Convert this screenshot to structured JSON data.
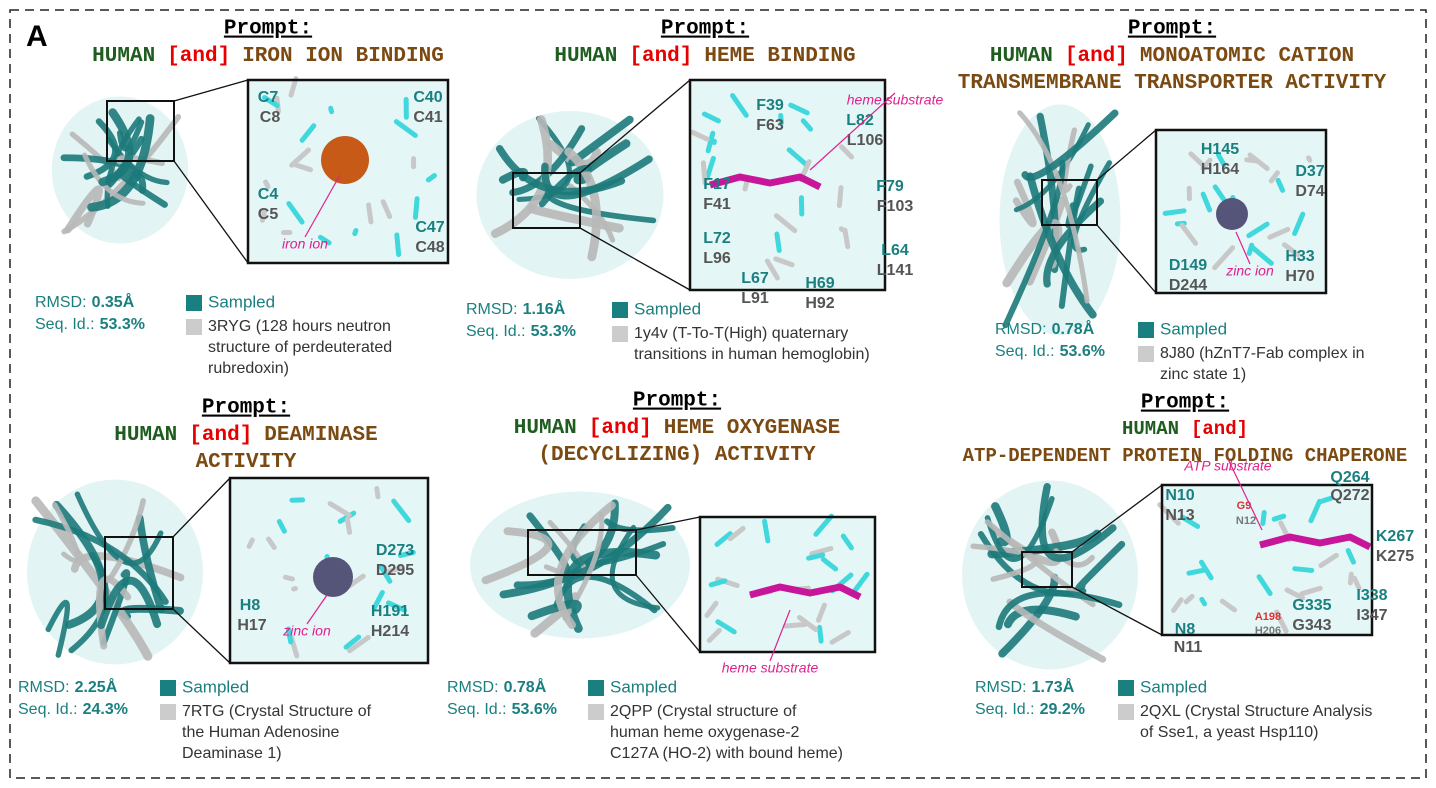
{
  "figure_label": "A",
  "panels": [
    {
      "prompt": "Prompt:",
      "lines": [
        {
          "tokens": [
            "HUMAN",
            "[and]",
            "IRON ION BINDING"
          ],
          "colors": [
            "#1f5c1f",
            "#e60000",
            "#7b4a12"
          ]
        }
      ],
      "rmsd_label": "RMSD:",
      "rmsd": "0.35Å",
      "seqid_label": "Seq. Id.:",
      "seqid": "53.3%",
      "sampled": "Sampled",
      "sampled_color": "#1a7f7f",
      "reference_color": "#cccccc",
      "reference": [
        "3RYG (128 hours neutron",
        "structure of perdeuterated",
        "rubredoxin)"
      ],
      "residues": [
        {
          "label": "C7",
          "color": "#1a7f7f"
        },
        {
          "label": "C8",
          "color": "#555555"
        },
        {
          "label": "C40",
          "color": "#1a7f7f"
        },
        {
          "label": "C41",
          "color": "#555555"
        },
        {
          "label": "C4",
          "color": "#1a7f7f"
        },
        {
          "label": "C5",
          "color": "#555555"
        },
        {
          "label": "C47",
          "color": "#1a7f7f"
        },
        {
          "label": "C48",
          "color": "#555555"
        }
      ],
      "annotation": "iron ion"
    },
    {
      "prompt": "Prompt:",
      "lines": [
        {
          "tokens": [
            "HUMAN",
            "[and]",
            "HEME BINDING"
          ],
          "colors": [
            "#1f5c1f",
            "#e60000",
            "#7b4a12"
          ]
        }
      ],
      "rmsd_label": "RMSD:",
      "rmsd": "1.16Å",
      "seqid_label": "Seq. Id.:",
      "seqid": "53.3%",
      "sampled": "Sampled",
      "sampled_color": "#1a7f7f",
      "reference_color": "#cccccc",
      "reference": [
        "1y4v (T-To-T(High) quaternary",
        "transitions in human hemoglobin)"
      ],
      "residues": [
        {
          "label": "F39",
          "color": "#1a7f7f"
        },
        {
          "label": "F63",
          "color": "#555555"
        },
        {
          "label": "L82",
          "color": "#1a7f7f"
        },
        {
          "label": "L106",
          "color": "#555555"
        },
        {
          "label": "F17",
          "color": "#1a7f7f"
        },
        {
          "label": "F41",
          "color": "#555555"
        },
        {
          "label": "F79",
          "color": "#1a7f7f"
        },
        {
          "label": "F103",
          "color": "#555555"
        },
        {
          "label": "L72",
          "color": "#1a7f7f"
        },
        {
          "label": "L96",
          "color": "#555555"
        },
        {
          "label": "L64",
          "color": "#1a7f7f"
        },
        {
          "label": "L141",
          "color": "#555555"
        },
        {
          "label": "L67",
          "color": "#1a7f7f"
        },
        {
          "label": "L91",
          "color": "#555555"
        },
        {
          "label": "H69",
          "color": "#1a7f7f"
        },
        {
          "label": "H92",
          "color": "#555555"
        }
      ],
      "annotation": "heme substrate"
    },
    {
      "prompt": "Prompt:",
      "lines": [
        {
          "tokens": [
            "HUMAN",
            "[and]",
            "MONOATOMIC CATION"
          ],
          "colors": [
            "#1f5c1f",
            "#e60000",
            "#7b4a12"
          ]
        },
        {
          "tokens": [
            "TRANSMEMBRANE TRANSPORTER ACTIVITY"
          ],
          "colors": [
            "#7b4a12"
          ]
        }
      ],
      "rmsd_label": "RMSD:",
      "rmsd": "0.78Å",
      "seqid_label": "Seq. Id.:",
      "seqid": "53.6%",
      "sampled": "Sampled",
      "sampled_color": "#1a7f7f",
      "reference_color": "#cccccc",
      "reference": [
        "8J80 (hZnT7-Fab complex in",
        "zinc state 1)"
      ],
      "residues": [
        {
          "label": "H145",
          "color": "#1a7f7f"
        },
        {
          "label": "H164",
          "color": "#555555"
        },
        {
          "label": "D37",
          "color": "#1a7f7f"
        },
        {
          "label": "D74",
          "color": "#555555"
        },
        {
          "label": "D149",
          "color": "#1a7f7f"
        },
        {
          "label": "D244",
          "color": "#555555"
        },
        {
          "label": "H33",
          "color": "#1a7f7f"
        },
        {
          "label": "H70",
          "color": "#555555"
        }
      ],
      "annotation": "zinc ion"
    },
    {
      "prompt": "Prompt:",
      "lines": [
        {
          "tokens": [
            "HUMAN",
            "[and]",
            "DEAMINASE"
          ],
          "colors": [
            "#1f5c1f",
            "#e60000",
            "#7b4a12"
          ]
        },
        {
          "tokens": [
            "ACTIVITY"
          ],
          "colors": [
            "#7b4a12"
          ]
        }
      ],
      "rmsd_label": "RMSD:",
      "rmsd": "2.25Å",
      "seqid_label": "Seq. Id.:",
      "seqid": "24.3%",
      "sampled": "Sampled",
      "sampled_color": "#1a7f7f",
      "reference_color": "#cccccc",
      "reference": [
        "7RTG (Crystal Structure of",
        "the Human Adenosine",
        "Deaminase 1)"
      ],
      "residues": [
        {
          "label": "D273",
          "color": "#1a7f7f"
        },
        {
          "label": "D295",
          "color": "#555555"
        },
        {
          "label": "H8",
          "color": "#1a7f7f"
        },
        {
          "label": "H17",
          "color": "#555555"
        },
        {
          "label": "H191",
          "color": "#1a7f7f"
        },
        {
          "label": "H214",
          "color": "#555555"
        }
      ],
      "annotation": "zinc ion"
    },
    {
      "prompt": "Prompt:",
      "lines": [
        {
          "tokens": [
            "HUMAN",
            "[and]",
            "HEME OXYGENASE"
          ],
          "colors": [
            "#1f5c1f",
            "#e60000",
            "#7b4a12"
          ]
        },
        {
          "tokens": [
            "(DECYCLIZING) ACTIVITY"
          ],
          "colors": [
            "#7b4a12"
          ]
        }
      ],
      "rmsd_label": "RMSD:",
      "rmsd": "0.78Å",
      "seqid_label": "Seq. Id.:",
      "seqid": "53.6%",
      "sampled": "Sampled",
      "sampled_color": "#1a7f7f",
      "reference_color": "#cccccc",
      "reference": [
        "2QPP (Crystal structure of",
        "human heme oxygenase-2",
        "C127A (HO-2) with bound heme)"
      ],
      "residues": [],
      "annotation": "heme substrate"
    },
    {
      "prompt": "Prompt:",
      "lines": [
        {
          "tokens": [
            "HUMAN",
            "[and]"
          ],
          "colors": [
            "#1f5c1f",
            "#e60000"
          ]
        },
        {
          "tokens": [
            "ATP-DEPENDENT PROTEIN FOLDING CHAPERONE"
          ],
          "colors": [
            "#7b4a12"
          ]
        }
      ],
      "rmsd_label": "RMSD:",
      "rmsd": "1.73Å",
      "seqid_label": "Seq. Id.:",
      "seqid": "29.2%",
      "sampled": "Sampled",
      "sampled_color": "#1a7f7f",
      "reference_color": "#cccccc",
      "reference": [
        "2QXL (Crystal Structure Analysis",
        "of Sse1, a yeast Hsp110)"
      ],
      "residues": [
        {
          "label": "Q264",
          "color": "#1a7f7f"
        },
        {
          "label": "Q272",
          "color": "#555555"
        },
        {
          "label": "N10",
          "color": "#1a7f7f"
        },
        {
          "label": "N13",
          "color": "#555555"
        },
        {
          "label": "K267",
          "color": "#1a7f7f"
        },
        {
          "label": "K275",
          "color": "#555555"
        },
        {
          "label": "G9",
          "color": "#e03030"
        },
        {
          "label": "N12",
          "color": "#777777"
        },
        {
          "label": "G335",
          "color": "#1a7f7f"
        },
        {
          "label": "G343",
          "color": "#555555"
        },
        {
          "label": "I338",
          "color": "#1a7f7f"
        },
        {
          "label": "I347",
          "color": "#555555"
        },
        {
          "label": "A198",
          "color": "#e03030"
        },
        {
          "label": "H206",
          "color": "#777777"
        },
        {
          "label": "N8",
          "color": "#1a7f7f"
        },
        {
          "label": "N11",
          "color": "#555555"
        }
      ],
      "annotation": "ATP substrate"
    }
  ]
}
